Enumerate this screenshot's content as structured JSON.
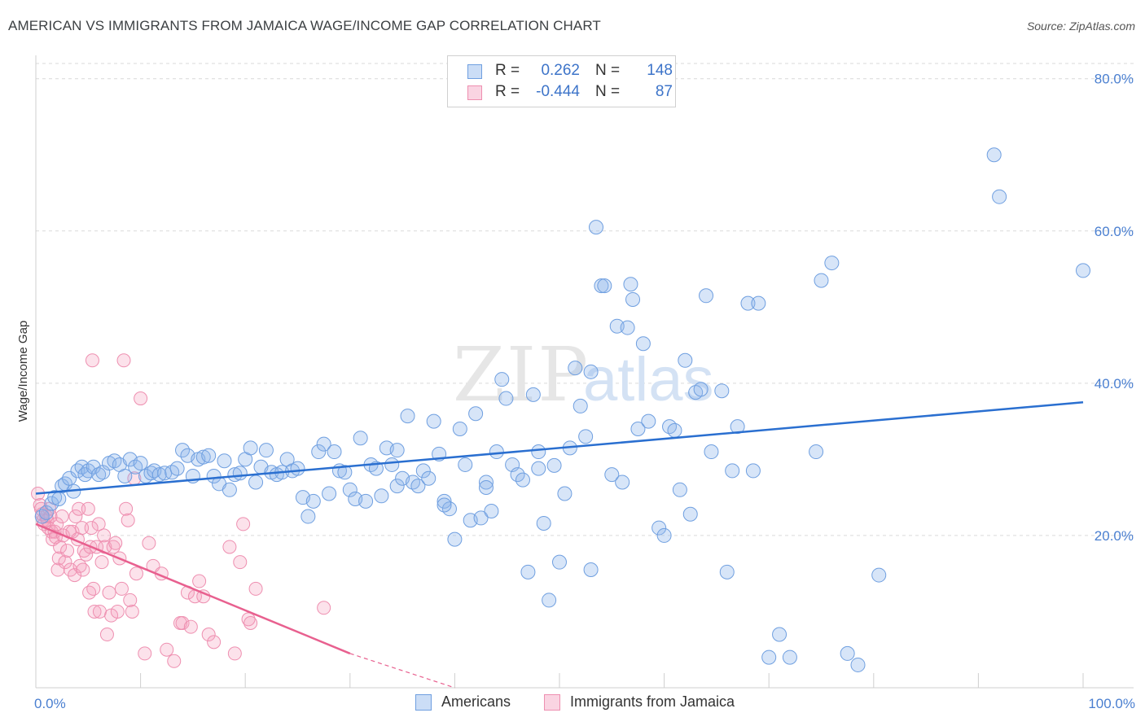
{
  "title": "AMERICAN VS IMMIGRANTS FROM JAMAICA WAGE/INCOME GAP CORRELATION CHART",
  "source": "Source: ZipAtlas.com",
  "watermark": {
    "zip": "ZIP",
    "atlas": "atlas"
  },
  "legend_top": [
    {
      "r_label": "R =",
      "r_value": "0.262",
      "n_label": "N =",
      "n_value": "148"
    },
    {
      "r_label": "R =",
      "r_value": "-0.444",
      "n_label": "N =",
      "n_value": "87"
    }
  ],
  "legend_bottom": [
    "Americans",
    "Immigrants from Jamaica"
  ],
  "colors": {
    "blue_fill": "rgba(140,180,235,0.35)",
    "blue_stroke": "#6f9fe0",
    "blue_line": "#2a6fd0",
    "pink_fill": "rgba(245,160,190,0.30)",
    "pink_stroke": "#ee8fb0",
    "pink_line": "#e8608f",
    "tick_text": "#4a7fd0",
    "grid": "#d9d9d9"
  },
  "chart_data": {
    "type": "scatter",
    "title": "AMERICAN VS IMMIGRANTS FROM JAMAICA WAGE/INCOME GAP CORRELATION CHART",
    "xlabel": "",
    "ylabel": "Wage/Income Gap",
    "xlim": [
      0,
      100
    ],
    "ylim": [
      0,
      82
    ],
    "x_tick_labels": [
      "0.0%",
      "100.0%"
    ],
    "y_ticks": [
      20,
      40,
      60,
      80
    ],
    "y_tick_labels": [
      "20.0%",
      "40.0%",
      "60.0%",
      "80.0%"
    ],
    "grid": true,
    "legend_position": "top-center",
    "series": [
      {
        "name": "Americans",
        "r": 0.262,
        "n": 148,
        "trend": {
          "x": [
            0,
            100
          ],
          "y": [
            25.5,
            37.5
          ],
          "dashed_extension": false
        },
        "points": [
          [
            0.6,
            22.5
          ],
          [
            1.0,
            23.0
          ],
          [
            1.5,
            24.2
          ],
          [
            1.8,
            25.0
          ],
          [
            2.2,
            24.8
          ],
          [
            2.5,
            26.5
          ],
          [
            2.8,
            26.8
          ],
          [
            3.2,
            27.5
          ],
          [
            3.6,
            25.8
          ],
          [
            4.0,
            28.5
          ],
          [
            4.4,
            29.0
          ],
          [
            4.7,
            28.0
          ],
          [
            5.0,
            28.5
          ],
          [
            5.5,
            29.0
          ],
          [
            6.0,
            28.0
          ],
          [
            6.4,
            28.3
          ],
          [
            7.0,
            29.5
          ],
          [
            7.5,
            29.8
          ],
          [
            8.0,
            29.3
          ],
          [
            8.5,
            27.8
          ],
          [
            9.0,
            30.0
          ],
          [
            9.5,
            29.0
          ],
          [
            10.0,
            29.5
          ],
          [
            10.5,
            27.8
          ],
          [
            11.0,
            28.2
          ],
          [
            11.3,
            28.5
          ],
          [
            11.8,
            28.0
          ],
          [
            12.3,
            28.2
          ],
          [
            13.0,
            28.3
          ],
          [
            13.5,
            28.8
          ],
          [
            14.0,
            31.2
          ],
          [
            14.5,
            30.5
          ],
          [
            15.0,
            27.8
          ],
          [
            15.5,
            30.0
          ],
          [
            16.0,
            30.3
          ],
          [
            16.5,
            30.5
          ],
          [
            17.0,
            27.8
          ],
          [
            17.5,
            26.8
          ],
          [
            18.0,
            29.8
          ],
          [
            18.5,
            26.0
          ],
          [
            19.0,
            28.0
          ],
          [
            19.5,
            28.2
          ],
          [
            20.0,
            30.0
          ],
          [
            20.5,
            31.5
          ],
          [
            21.0,
            27.0
          ],
          [
            21.5,
            29.0
          ],
          [
            22.0,
            31.2
          ],
          [
            22.5,
            28.3
          ],
          [
            23.0,
            28.0
          ],
          [
            23.5,
            28.3
          ],
          [
            24.0,
            30.0
          ],
          [
            24.5,
            28.5
          ],
          [
            25.0,
            28.8
          ],
          [
            25.5,
            25.0
          ],
          [
            26.0,
            22.5
          ],
          [
            26.5,
            24.5
          ],
          [
            27.0,
            31.0
          ],
          [
            27.5,
            32.0
          ],
          [
            28.0,
            25.5
          ],
          [
            28.5,
            31.0
          ],
          [
            29.0,
            28.5
          ],
          [
            29.5,
            28.3
          ],
          [
            30.0,
            26.0
          ],
          [
            30.5,
            24.8
          ],
          [
            31.0,
            32.8
          ],
          [
            31.5,
            24.5
          ],
          [
            32.0,
            29.3
          ],
          [
            32.5,
            28.8
          ],
          [
            33.0,
            25.2
          ],
          [
            33.5,
            31.5
          ],
          [
            34.0,
            29.3
          ],
          [
            34.5,
            26.5
          ],
          [
            35.0,
            27.5
          ],
          [
            35.5,
            35.7
          ],
          [
            36.0,
            27.0
          ],
          [
            36.5,
            26.5
          ],
          [
            37.0,
            28.5
          ],
          [
            37.5,
            27.5
          ],
          [
            38.0,
            35.0
          ],
          [
            38.5,
            30.7
          ],
          [
            39.0,
            24.5
          ],
          [
            39.5,
            23.5
          ],
          [
            40.0,
            19.5
          ],
          [
            40.5,
            34.0
          ],
          [
            41.0,
            29.3
          ],
          [
            41.5,
            22.0
          ],
          [
            42.0,
            36.0
          ],
          [
            42.5,
            22.3
          ],
          [
            43.0,
            27.0
          ],
          [
            43.5,
            23.2
          ],
          [
            44.0,
            31.0
          ],
          [
            44.5,
            40.5
          ],
          [
            44.9,
            38.0
          ],
          [
            45.5,
            29.3
          ],
          [
            46.0,
            28.0
          ],
          [
            46.5,
            27.3
          ],
          [
            47.0,
            15.2
          ],
          [
            47.5,
            38.5
          ],
          [
            48.0,
            28.8
          ],
          [
            48.5,
            21.6
          ],
          [
            49.0,
            11.5
          ],
          [
            49.5,
            29.2
          ],
          [
            50.0,
            16.5
          ],
          [
            50.5,
            25.5
          ],
          [
            51.0,
            31.5
          ],
          [
            51.5,
            42.0
          ],
          [
            52.0,
            37.0
          ],
          [
            52.5,
            33.0
          ],
          [
            53.0,
            15.5
          ],
          [
            53.5,
            60.5
          ],
          [
            54.0,
            52.8
          ],
          [
            54.3,
            52.8
          ],
          [
            55.0,
            28.0
          ],
          [
            55.5,
            47.5
          ],
          [
            56.0,
            27.0
          ],
          [
            56.5,
            47.3
          ],
          [
            57.0,
            51.0
          ],
          [
            57.5,
            34.0
          ],
          [
            58.0,
            45.2
          ],
          [
            58.5,
            35.0
          ],
          [
            59.5,
            21.0
          ],
          [
            60.0,
            20.0
          ],
          [
            60.5,
            34.3
          ],
          [
            61.0,
            33.8
          ],
          [
            61.5,
            26.0
          ],
          [
            62.0,
            43.0
          ],
          [
            62.5,
            22.8
          ],
          [
            63.0,
            38.8
          ],
          [
            63.5,
            39.2
          ],
          [
            64.0,
            51.5
          ],
          [
            64.5,
            31.0
          ],
          [
            65.5,
            39.0
          ],
          [
            66.0,
            15.2
          ],
          [
            66.5,
            28.5
          ],
          [
            67.0,
            34.3
          ],
          [
            68.0,
            50.5
          ],
          [
            68.5,
            28.5
          ],
          [
            69.0,
            50.5
          ],
          [
            70.0,
            4.0
          ],
          [
            71.0,
            7.0
          ],
          [
            72.0,
            4.0
          ],
          [
            74.5,
            31.0
          ],
          [
            75.0,
            53.5
          ],
          [
            76.0,
            55.8
          ],
          [
            77.5,
            4.5
          ],
          [
            78.5,
            3.0
          ],
          [
            80.5,
            14.8
          ],
          [
            91.5,
            70.0
          ],
          [
            92.0,
            64.5
          ],
          [
            100.0,
            54.8
          ],
          [
            53.0,
            41.5
          ],
          [
            56.8,
            53.0
          ],
          [
            48.0,
            31.0
          ],
          [
            34.5,
            31.2
          ],
          [
            39.0,
            24.0
          ],
          [
            43.0,
            26.3
          ]
        ]
      },
      {
        "name": "Immigrants from Jamaica",
        "r": -0.444,
        "n": 87,
        "trend": {
          "x": [
            0,
            30
          ],
          "y": [
            21.5,
            4.5
          ],
          "dashed_extension_to": [
            40,
            0
          ]
        },
        "points": [
          [
            0.2,
            25.5
          ],
          [
            0.4,
            24.0
          ],
          [
            0.5,
            23.5
          ],
          [
            0.6,
            22.8
          ],
          [
            0.7,
            22.0
          ],
          [
            0.8,
            21.5
          ],
          [
            1.0,
            22.5
          ],
          [
            1.1,
            22.0
          ],
          [
            1.2,
            21.0
          ],
          [
            1.3,
            23.5
          ],
          [
            1.4,
            22.5
          ],
          [
            1.5,
            20.5
          ],
          [
            1.6,
            19.5
          ],
          [
            1.8,
            20.5
          ],
          [
            1.9,
            19.8
          ],
          [
            2.0,
            21.5
          ],
          [
            2.1,
            15.5
          ],
          [
            2.2,
            17.0
          ],
          [
            2.3,
            18.5
          ],
          [
            2.5,
            22.5
          ],
          [
            2.6,
            20.0
          ],
          [
            2.8,
            16.5
          ],
          [
            3.0,
            18.0
          ],
          [
            3.2,
            20.5
          ],
          [
            3.3,
            15.5
          ],
          [
            3.5,
            20.5
          ],
          [
            3.7,
            14.8
          ],
          [
            3.8,
            22.5
          ],
          [
            4.0,
            19.5
          ],
          [
            4.1,
            23.5
          ],
          [
            4.2,
            16.0
          ],
          [
            4.4,
            21.0
          ],
          [
            4.5,
            15.5
          ],
          [
            4.6,
            18.0
          ],
          [
            4.8,
            17.5
          ],
          [
            5.0,
            23.5
          ],
          [
            5.1,
            12.5
          ],
          [
            5.2,
            18.5
          ],
          [
            5.4,
            43.0
          ],
          [
            5.5,
            13.0
          ],
          [
            5.6,
            10.0
          ],
          [
            5.8,
            18.5
          ],
          [
            6.0,
            21.5
          ],
          [
            6.1,
            10.0
          ],
          [
            6.3,
            16.5
          ],
          [
            6.5,
            20.0
          ],
          [
            6.6,
            18.5
          ],
          [
            6.8,
            7.0
          ],
          [
            7.0,
            12.5
          ],
          [
            7.2,
            9.5
          ],
          [
            7.4,
            18.5
          ],
          [
            7.6,
            19.0
          ],
          [
            7.8,
            10.0
          ],
          [
            8.0,
            17.0
          ],
          [
            8.2,
            13.0
          ],
          [
            8.4,
            43.0
          ],
          [
            8.6,
            23.5
          ],
          [
            8.8,
            22.0
          ],
          [
            9.0,
            11.5
          ],
          [
            9.2,
            10.0
          ],
          [
            9.4,
            27.5
          ],
          [
            9.6,
            15.0
          ],
          [
            10.0,
            38.0
          ],
          [
            10.4,
            4.5
          ],
          [
            10.8,
            19.0
          ],
          [
            11.2,
            16.0
          ],
          [
            12.0,
            15.0
          ],
          [
            12.5,
            5.0
          ],
          [
            13.2,
            3.5
          ],
          [
            13.8,
            8.5
          ],
          [
            14.0,
            8.5
          ],
          [
            14.5,
            12.5
          ],
          [
            14.8,
            8.0
          ],
          [
            15.2,
            12.0
          ],
          [
            15.6,
            14.0
          ],
          [
            16.0,
            12.0
          ],
          [
            16.5,
            7.0
          ],
          [
            17.0,
            6.0
          ],
          [
            18.5,
            18.5
          ],
          [
            19.0,
            4.5
          ],
          [
            19.5,
            16.5
          ],
          [
            19.8,
            21.5
          ],
          [
            20.3,
            9.0
          ],
          [
            20.5,
            8.5
          ],
          [
            27.5,
            10.5
          ],
          [
            21.0,
            13.0
          ],
          [
            5.3,
            21.0
          ]
        ]
      }
    ]
  }
}
